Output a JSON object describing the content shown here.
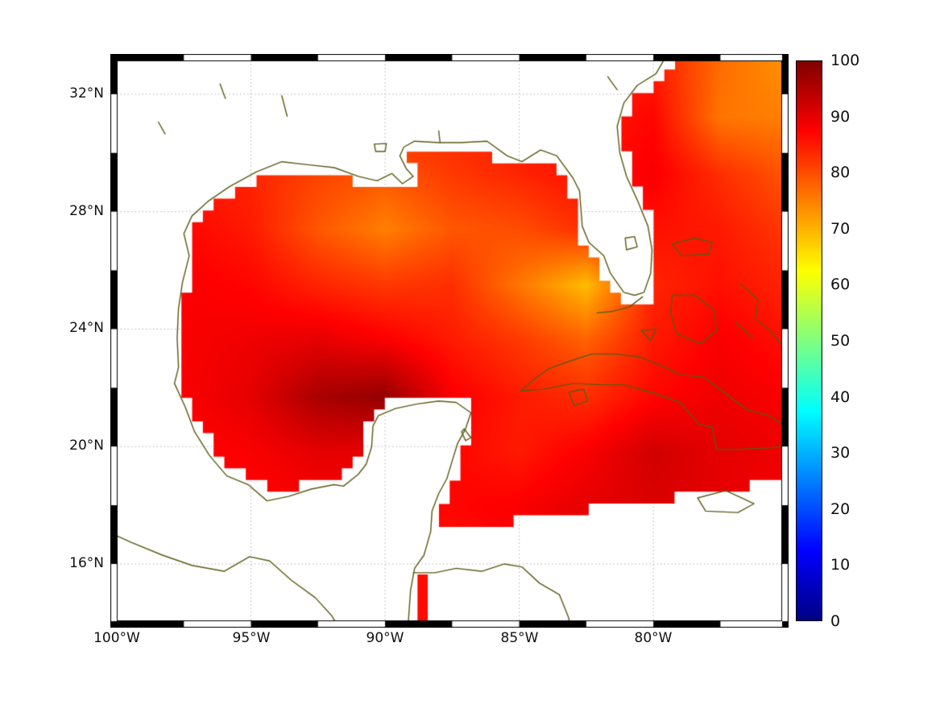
{
  "figure": {
    "background_color": "#ffffff",
    "frame_color": "#000000",
    "grid_color": "#b5b5b5",
    "coast_color": "#5a5a14",
    "nodata_color": "#ffffff",
    "text_color": "#111111"
  },
  "chart_data": {
    "type": "heatmap",
    "title": "",
    "xlabel": "",
    "ylabel": "",
    "lon_range": [
      -100,
      -75.2
    ],
    "lat_range": [
      14.05,
      33.15
    ],
    "value_range": [
      0,
      100
    ],
    "colormap": "jet",
    "colormap_stops": [
      [
        0.0,
        [
          0,
          0,
          131
        ]
      ],
      [
        0.125,
        [
          0,
          0,
          255
        ]
      ],
      [
        0.375,
        [
          0,
          255,
          255
        ]
      ],
      [
        0.625,
        [
          255,
          255,
          0
        ]
      ],
      [
        0.875,
        [
          255,
          0,
          0
        ]
      ],
      [
        1.0,
        [
          128,
          0,
          0
        ]
      ]
    ],
    "x_ticks": [
      {
        "label": "100°W",
        "lon": -100
      },
      {
        "label": "95°W",
        "lon": -95
      },
      {
        "label": "90°W",
        "lon": -90
      },
      {
        "label": "85°W",
        "lon": -85
      },
      {
        "label": "80°W",
        "lon": -80
      }
    ],
    "y_ticks": [
      {
        "label": "32°N",
        "lat": 32
      },
      {
        "label": "28°N",
        "lat": 28
      },
      {
        "label": "24°N",
        "lat": 24
      },
      {
        "label": "20°N",
        "lat": 20
      },
      {
        "label": "16°N",
        "lat": 16
      }
    ],
    "colorbar": {
      "ticks": [
        {
          "label": "100",
          "value": 100
        },
        {
          "label": "90",
          "value": 90
        },
        {
          "label": "80",
          "value": 80
        },
        {
          "label": "70",
          "value": 70
        },
        {
          "label": "60",
          "value": 60
        },
        {
          "label": "50",
          "value": 50
        },
        {
          "label": "40",
          "value": 40
        },
        {
          "label": "30",
          "value": 30
        },
        {
          "label": "20",
          "value": 20
        },
        {
          "label": "10",
          "value": 10
        },
        {
          "label": "0",
          "value": 0
        }
      ]
    },
    "field_grid": {
      "lons": [
        -100,
        -97.5,
        -95,
        -92.5,
        -90,
        -87.5,
        -85,
        -82.5,
        -80,
        -77.5,
        -75
      ],
      "lats": [
        33.1,
        31.2,
        29.3,
        27.4,
        25.5,
        23.6,
        21.7,
        19.8,
        17.9,
        16.0,
        14.1
      ],
      "values": [
        [
          86,
          86,
          86,
          85,
          84,
          84,
          84,
          83,
          85,
          77,
          73
        ],
        [
          86,
          86,
          85,
          84,
          83,
          84,
          85,
          85,
          87,
          76,
          75
        ],
        [
          85,
          85,
          84,
          81,
          79,
          82,
          84,
          86,
          88,
          83,
          79
        ],
        [
          86,
          87,
          85,
          79,
          75,
          79,
          80,
          83,
          86,
          85,
          82
        ],
        [
          87,
          88,
          87,
          84,
          82,
          83,
          76,
          69,
          84,
          86,
          84
        ],
        [
          88,
          88,
          89,
          90,
          88,
          85,
          82,
          78,
          85,
          88,
          86
        ],
        [
          88,
          88,
          90,
          96,
          98,
          88,
          85,
          83,
          87,
          89,
          88
        ],
        [
          88,
          87,
          88,
          90,
          90,
          87,
          85,
          88,
          92,
          90,
          89
        ],
        [
          88,
          87,
          87,
          88,
          88,
          87,
          88,
          90,
          91,
          90,
          88
        ],
        [
          88,
          88,
          88,
          88,
          87,
          86,
          87,
          89,
          90,
          88,
          87
        ],
        [
          88,
          88,
          88,
          88,
          87,
          86,
          86,
          88,
          89,
          87,
          86
        ]
      ]
    },
    "mask": {
      "cell_deg": 0.4,
      "nodata_boundary": {
        "lon_min": -88.3,
        "lat_at_lon_min": 17.0,
        "slope_per_deg": 0.14
      }
    },
    "frame_bands": {
      "lon_step": 2.5,
      "lat_step": 2
    },
    "coastlines": [
      {
        "name": "mainland-gulf-coast",
        "closed": false,
        "land_fill": true,
        "points": [
          [
            -79.4,
            33.5
          ],
          [
            -79.9,
            32.7
          ],
          [
            -80.6,
            32.3
          ],
          [
            -81.1,
            31.7
          ],
          [
            -81.35,
            30.9
          ],
          [
            -81.25,
            30.0
          ],
          [
            -81.0,
            29.2
          ],
          [
            -80.6,
            28.4
          ],
          [
            -80.2,
            27.5
          ],
          [
            -80.05,
            26.7
          ],
          [
            -80.1,
            25.9
          ],
          [
            -80.35,
            25.25
          ],
          [
            -80.7,
            25.15
          ],
          [
            -81.1,
            25.25
          ],
          [
            -81.6,
            25.9
          ],
          [
            -81.85,
            26.5
          ],
          [
            -82.4,
            26.95
          ],
          [
            -82.65,
            27.5
          ],
          [
            -82.7,
            28.1
          ],
          [
            -82.75,
            28.7
          ],
          [
            -83.0,
            29.15
          ],
          [
            -83.6,
            29.9
          ],
          [
            -84.2,
            30.1
          ],
          [
            -84.9,
            29.7
          ],
          [
            -85.45,
            29.9
          ],
          [
            -86.2,
            30.4
          ],
          [
            -87.2,
            30.35
          ],
          [
            -88.0,
            30.35
          ],
          [
            -88.9,
            30.4
          ],
          [
            -89.3,
            30.2
          ],
          [
            -89.45,
            29.9
          ],
          [
            -89.2,
            29.45
          ],
          [
            -88.95,
            29.2
          ],
          [
            -89.35,
            28.95
          ],
          [
            -89.75,
            29.3
          ],
          [
            -90.3,
            29.05
          ],
          [
            -91.0,
            29.2
          ],
          [
            -91.9,
            29.5
          ],
          [
            -92.9,
            29.6
          ],
          [
            -93.85,
            29.7
          ],
          [
            -94.8,
            29.35
          ],
          [
            -95.8,
            28.85
          ],
          [
            -96.6,
            28.35
          ],
          [
            -97.2,
            27.85
          ],
          [
            -97.5,
            27.25
          ],
          [
            -97.3,
            26.5
          ],
          [
            -97.55,
            25.6
          ],
          [
            -97.7,
            24.7
          ],
          [
            -97.75,
            23.7
          ],
          [
            -97.7,
            22.7
          ],
          [
            -97.85,
            22.15
          ],
          [
            -97.45,
            21.35
          ],
          [
            -97.1,
            20.5
          ],
          [
            -96.55,
            19.7
          ],
          [
            -95.9,
            19.0
          ],
          [
            -95.1,
            18.7
          ],
          [
            -94.4,
            18.15
          ],
          [
            -93.6,
            18.3
          ],
          [
            -92.75,
            18.55
          ],
          [
            -91.9,
            18.7
          ],
          [
            -91.55,
            18.65
          ],
          [
            -91.0,
            19.05
          ],
          [
            -90.7,
            19.4
          ],
          [
            -90.5,
            20.0
          ],
          [
            -90.45,
            20.7
          ],
          [
            -90.25,
            21.05
          ],
          [
            -89.6,
            21.3
          ],
          [
            -88.8,
            21.45
          ],
          [
            -88.0,
            21.55
          ],
          [
            -87.35,
            21.5
          ],
          [
            -86.8,
            21.15
          ],
          [
            -87.0,
            20.6
          ],
          [
            -87.3,
            20.1
          ],
          [
            -87.5,
            19.5
          ],
          [
            -87.7,
            18.9
          ],
          [
            -88.0,
            18.4
          ],
          [
            -88.25,
            17.8
          ],
          [
            -88.3,
            17.1
          ],
          [
            -88.55,
            16.3
          ],
          [
            -88.9,
            15.85
          ],
          [
            -89.05,
            15.1
          ],
          [
            -89.15,
            13.8
          ]
        ],
        "close_with": [
          [
            -89.15,
            13.5
          ],
          [
            -101,
            13.5
          ],
          [
            -101,
            33.6
          ],
          [
            -79.4,
            33.6
          ]
        ]
      },
      {
        "name": "pacific-coast",
        "closed": false,
        "points": [
          [
            -100.8,
            17.3
          ],
          [
            -99.5,
            16.75
          ],
          [
            -98.3,
            16.3
          ],
          [
            -97.2,
            15.95
          ],
          [
            -96.0,
            15.75
          ],
          [
            -95.05,
            16.25
          ],
          [
            -94.3,
            16.1
          ],
          [
            -93.5,
            15.45
          ],
          [
            -92.6,
            14.85
          ],
          [
            -92.0,
            14.25
          ],
          [
            -91.7,
            13.8
          ]
        ]
      },
      {
        "name": "central-america-caribbean-coast",
        "closed": false,
        "points": [
          [
            -88.95,
            15.7
          ],
          [
            -88.15,
            15.7
          ],
          [
            -87.35,
            15.85
          ],
          [
            -86.4,
            15.75
          ],
          [
            -85.55,
            16.0
          ],
          [
            -84.9,
            15.9
          ],
          [
            -84.25,
            15.35
          ],
          [
            -83.5,
            14.95
          ],
          [
            -83.15,
            14.15
          ],
          [
            -83.1,
            13.8
          ]
        ]
      },
      {
        "name": "cuba",
        "closed": true,
        "points": [
          [
            -84.95,
            21.9
          ],
          [
            -84.35,
            22.35
          ],
          [
            -83.9,
            22.65
          ],
          [
            -83.15,
            22.9
          ],
          [
            -82.3,
            23.15
          ],
          [
            -81.4,
            23.15
          ],
          [
            -80.5,
            23.05
          ],
          [
            -79.7,
            22.75
          ],
          [
            -79.0,
            22.45
          ],
          [
            -78.1,
            22.35
          ],
          [
            -77.3,
            21.8
          ],
          [
            -76.5,
            21.25
          ],
          [
            -75.7,
            21.05
          ],
          [
            -75.0,
            20.65
          ],
          [
            -74.6,
            20.3
          ],
          [
            -74.9,
            20.0
          ],
          [
            -75.8,
            19.95
          ],
          [
            -76.9,
            19.9
          ],
          [
            -77.65,
            19.9
          ],
          [
            -77.8,
            20.65
          ],
          [
            -78.3,
            20.75
          ],
          [
            -79.0,
            21.5
          ],
          [
            -80.1,
            21.85
          ],
          [
            -81.1,
            22.1
          ],
          [
            -81.9,
            22.1
          ],
          [
            -83.0,
            22.15
          ],
          [
            -84.1,
            21.95
          ]
        ]
      },
      {
        "name": "isla-de-la-juventud",
        "closed": true,
        "points": [
          [
            -83.15,
            21.85
          ],
          [
            -82.6,
            21.95
          ],
          [
            -82.45,
            21.55
          ],
          [
            -82.95,
            21.4
          ]
        ]
      },
      {
        "name": "jamaica",
        "closed": true,
        "points": [
          [
            -78.35,
            18.25
          ],
          [
            -77.3,
            18.5
          ],
          [
            -76.25,
            18.05
          ],
          [
            -76.85,
            17.75
          ],
          [
            -78.05,
            17.8
          ]
        ]
      },
      {
        "name": "little-bahama-bank",
        "closed": true,
        "points": [
          [
            -79.3,
            26.9
          ],
          [
            -78.45,
            27.1
          ],
          [
            -77.8,
            26.95
          ],
          [
            -77.95,
            26.55
          ],
          [
            -78.95,
            26.5
          ]
        ]
      },
      {
        "name": "great-bahama-bank",
        "closed": true,
        "points": [
          [
            -79.3,
            25.15
          ],
          [
            -78.45,
            25.15
          ],
          [
            -77.75,
            24.65
          ],
          [
            -77.65,
            23.95
          ],
          [
            -78.25,
            23.5
          ],
          [
            -79.15,
            23.85
          ],
          [
            -79.35,
            24.55
          ]
        ]
      },
      {
        "name": "eleuthera-chain",
        "closed": false,
        "points": [
          [
            -76.75,
            25.55
          ],
          [
            -76.1,
            25.0
          ],
          [
            -76.2,
            24.35
          ],
          [
            -75.6,
            23.9
          ],
          [
            -75.1,
            23.35
          ]
        ]
      },
      {
        "name": "exuma-cays",
        "closed": false,
        "points": [
          [
            -76.95,
            24.25
          ],
          [
            -76.3,
            23.7
          ]
        ]
      },
      {
        "name": "cay-sal-bank",
        "closed": true,
        "points": [
          [
            -80.45,
            23.95
          ],
          [
            -79.9,
            24.0
          ],
          [
            -80.1,
            23.6
          ]
        ]
      },
      {
        "name": "florida-keys",
        "closed": false,
        "points": [
          [
            -80.4,
            25.1
          ],
          [
            -80.9,
            24.75
          ],
          [
            -81.55,
            24.6
          ],
          [
            -82.1,
            24.55
          ]
        ]
      },
      {
        "name": "lake-okeechobee",
        "closed": true,
        "points": [
          [
            -81.05,
            27.1
          ],
          [
            -80.7,
            27.15
          ],
          [
            -80.6,
            26.8
          ],
          [
            -81.0,
            26.7
          ]
        ]
      },
      {
        "name": "lake-pontchartrain",
        "closed": true,
        "points": [
          [
            -90.4,
            30.3
          ],
          [
            -89.95,
            30.32
          ],
          [
            -90.0,
            30.05
          ],
          [
            -90.35,
            30.05
          ]
        ]
      },
      {
        "name": "cozumel",
        "closed": true,
        "points": [
          [
            -87.05,
            20.6
          ],
          [
            -86.8,
            20.3
          ],
          [
            -87.0,
            20.2
          ],
          [
            -87.15,
            20.5
          ]
        ]
      },
      {
        "name": "toledo-bend-reservoir",
        "closed": false,
        "points": [
          [
            -93.85,
            31.95
          ],
          [
            -93.65,
            31.25
          ]
        ]
      },
      {
        "name": "east-texas-lake",
        "closed": false,
        "points": [
          [
            -96.15,
            32.35
          ],
          [
            -95.95,
            31.85
          ]
        ]
      },
      {
        "name": "texas-hill-lake",
        "closed": false,
        "points": [
          [
            -98.45,
            31.05
          ],
          [
            -98.2,
            30.65
          ]
        ]
      },
      {
        "name": "mobile-bay",
        "closed": false,
        "points": [
          [
            -88.0,
            30.75
          ],
          [
            -87.95,
            30.35
          ]
        ]
      },
      {
        "name": "georgia-river",
        "closed": false,
        "points": [
          [
            -81.7,
            32.6
          ],
          [
            -81.35,
            32.15
          ]
        ]
      }
    ]
  }
}
